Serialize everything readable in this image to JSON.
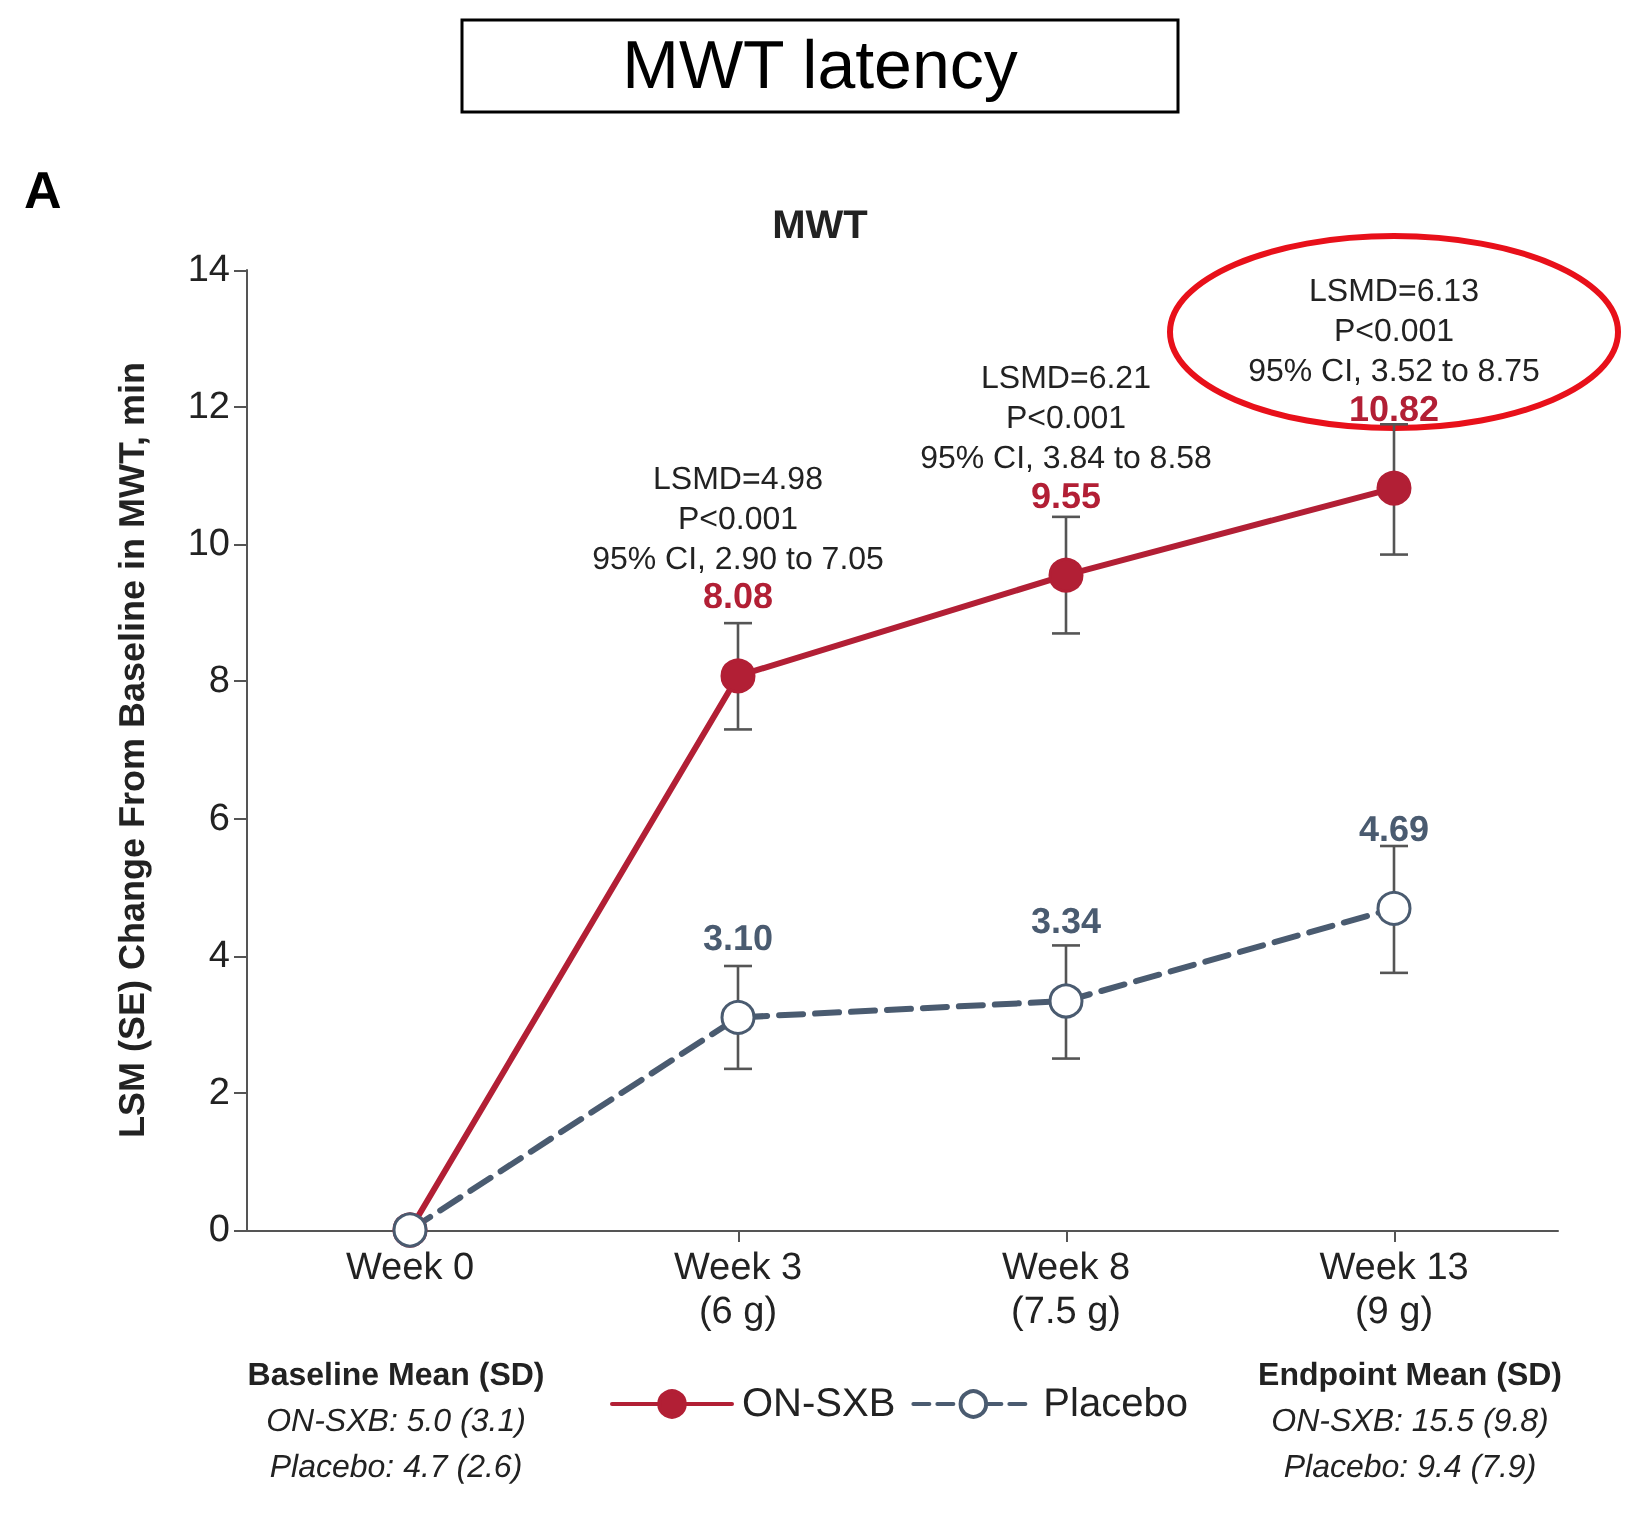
{
  "chart_data": {
    "type": "line",
    "title": "MWT latency",
    "subtitle": "MWT",
    "ylabel": "LSM (SE) Change From Baseline in MWT, min",
    "categories": [
      "Week 0",
      "Week 3\n(6 g)",
      "Week 8\n(7.5 g)",
      "Week 13\n(9 g)"
    ],
    "series": [
      {
        "name": "ON-SXB",
        "color": "#b21f35",
        "values": [
          0,
          8.08,
          9.55,
          10.82
        ],
        "errors": [
          null,
          [
            7.3,
            8.85
          ],
          [
            8.7,
            10.4
          ],
          [
            9.85,
            11.75
          ]
        ],
        "value_labels": [
          null,
          "8.08",
          "9.55",
          "10.82"
        ],
        "line_style": "solid",
        "marker": "circle"
      },
      {
        "name": "Placebo",
        "color": "#4a5b70",
        "values": [
          0,
          3.1,
          3.34,
          4.69
        ],
        "errors": [
          null,
          [
            2.35,
            3.85
          ],
          [
            2.5,
            4.15
          ],
          [
            3.75,
            5.6
          ]
        ],
        "value_labels": [
          null,
          "3.10",
          "3.34",
          "4.69"
        ],
        "line_style": "dashed",
        "marker": "circle"
      }
    ],
    "ylim": [
      0,
      14
    ],
    "yticks": [
      0,
      2,
      4,
      6,
      8,
      10,
      12,
      14
    ],
    "grid": false,
    "legend": "bottom",
    "annotations": [
      "A",
      "Baseline Mean (SD)",
      "ON-SXB: 5.0 (3.1)",
      "Placebo: 4.7 (2.6)",
      "Endpoint Mean (SD)",
      "ON-SXB: 15.5 (9.8)",
      "Placebo: 9.4 (7.9)",
      "LSMD=4.98\nP<0.001\n95% CI, 2.90 to 7.05",
      "LSMD=6.21\nP<0.001\n95% CI, 3.84 to 8.58",
      "LSMD=6.13\nP<0.001\n95% CI, 3.52 to 8.75"
    ]
  }
}
